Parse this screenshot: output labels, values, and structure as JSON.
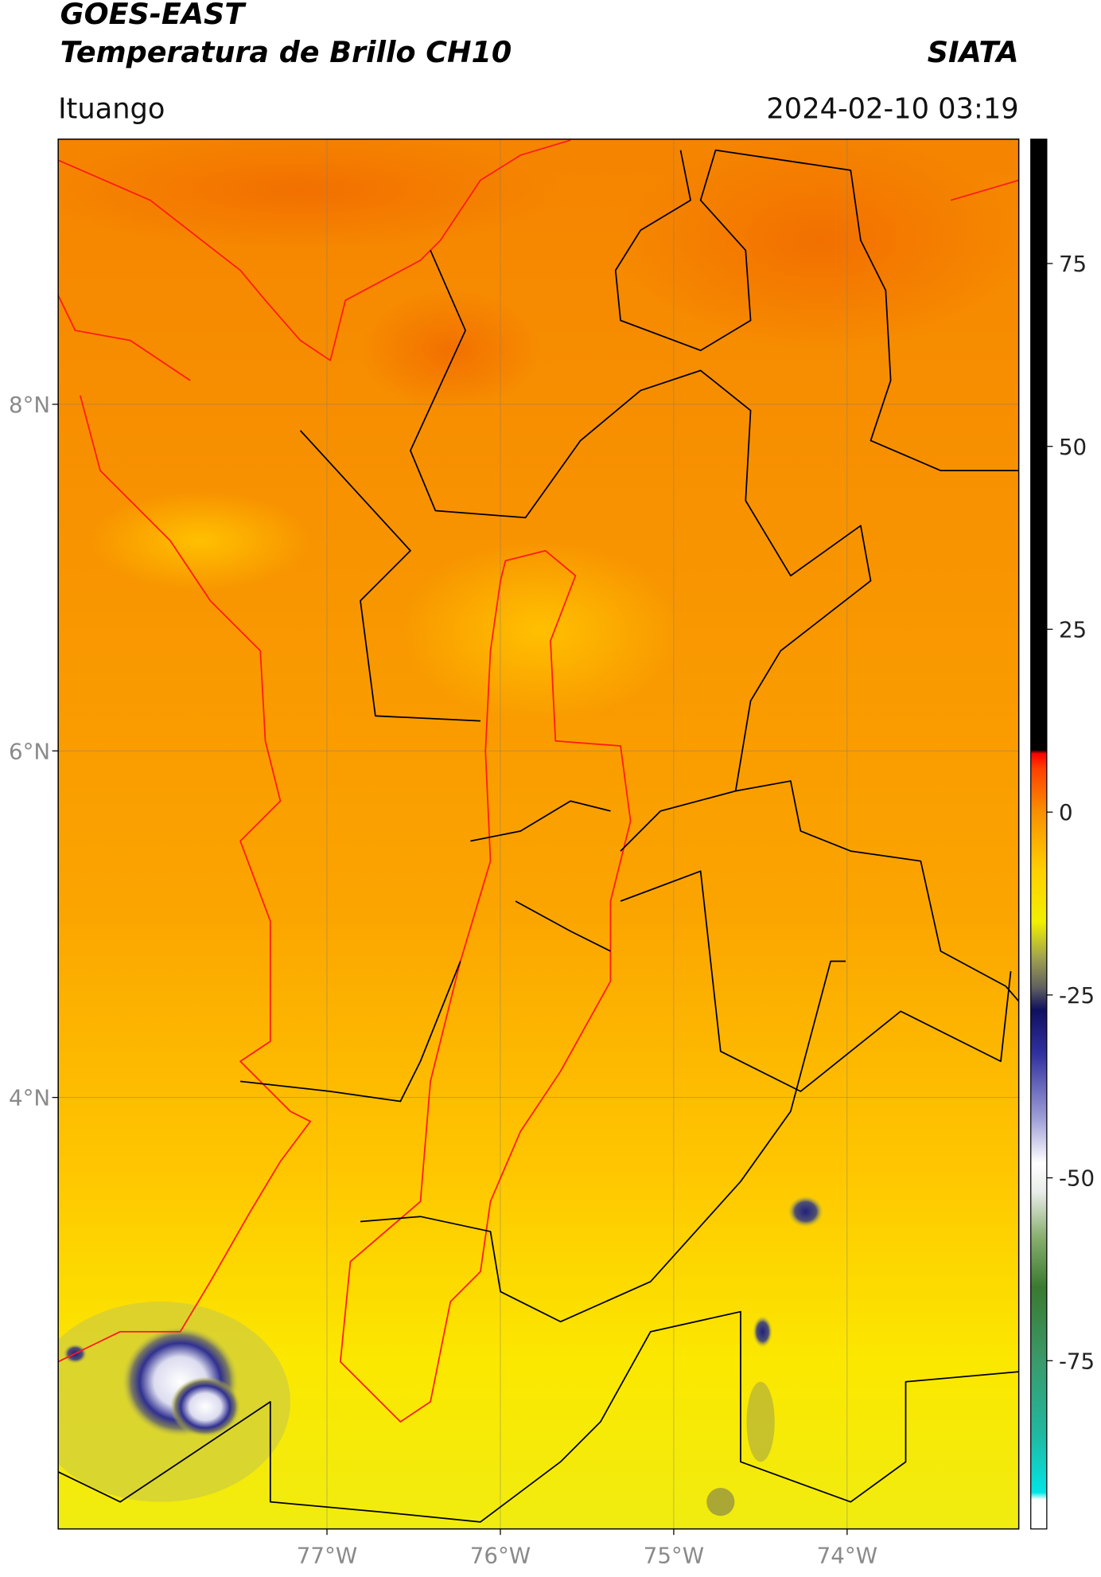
{
  "header": {
    "title": "GOES-EAST",
    "subtitle": "Temperatura de Brillo CH10",
    "organization": "SIATA",
    "location": "Ituango",
    "datetime": "2024-02-10 03:19"
  },
  "map": {
    "xlim": [
      -78.55,
      -73.01
    ],
    "ylim": [
      1.51,
      9.53
    ],
    "xticks": [
      {
        "value": -77,
        "label": "77°W"
      },
      {
        "value": -76,
        "label": "76°W"
      },
      {
        "value": -75,
        "label": "75°W"
      },
      {
        "value": -74,
        "label": "74°W"
      }
    ],
    "yticks": [
      {
        "value": 8,
        "label": "8°N"
      },
      {
        "value": 6,
        "label": "6°N"
      },
      {
        "value": 4,
        "label": "4°N"
      }
    ],
    "grid": true
  },
  "colorbar": {
    "clim": [
      -98,
      92
    ],
    "ticks": [
      75,
      50,
      25,
      0,
      -25,
      -50,
      -75
    ],
    "colormap": [
      {
        "value": -98,
        "color": "#ffffff"
      },
      {
        "value": -94,
        "color": "#ffffff"
      },
      {
        "value": -93,
        "color": "#00e5e5"
      },
      {
        "value": -85,
        "color": "#20b8a0"
      },
      {
        "value": -75,
        "color": "#3a9a6a"
      },
      {
        "value": -65,
        "color": "#3a7a30"
      },
      {
        "value": -58,
        "color": "#8ab070"
      },
      {
        "value": -52,
        "color": "#e8ece8"
      },
      {
        "value": -48,
        "color": "#ffffff"
      },
      {
        "value": -42,
        "color": "#a0a0d8"
      },
      {
        "value": -33,
        "color": "#3030a0"
      },
      {
        "value": -27,
        "color": "#101060"
      },
      {
        "value": -24,
        "color": "#606060"
      },
      {
        "value": -20,
        "color": "#a0a050"
      },
      {
        "value": -15,
        "color": "#f0f000"
      },
      {
        "value": -8,
        "color": "#ffd000"
      },
      {
        "value": 0,
        "color": "#f89000"
      },
      {
        "value": 6,
        "color": "#ff4000"
      },
      {
        "value": 8,
        "color": "#ff0000"
      },
      {
        "value": 8.5,
        "color": "#000000"
      },
      {
        "value": 92,
        "color": "#000000"
      }
    ]
  }
}
